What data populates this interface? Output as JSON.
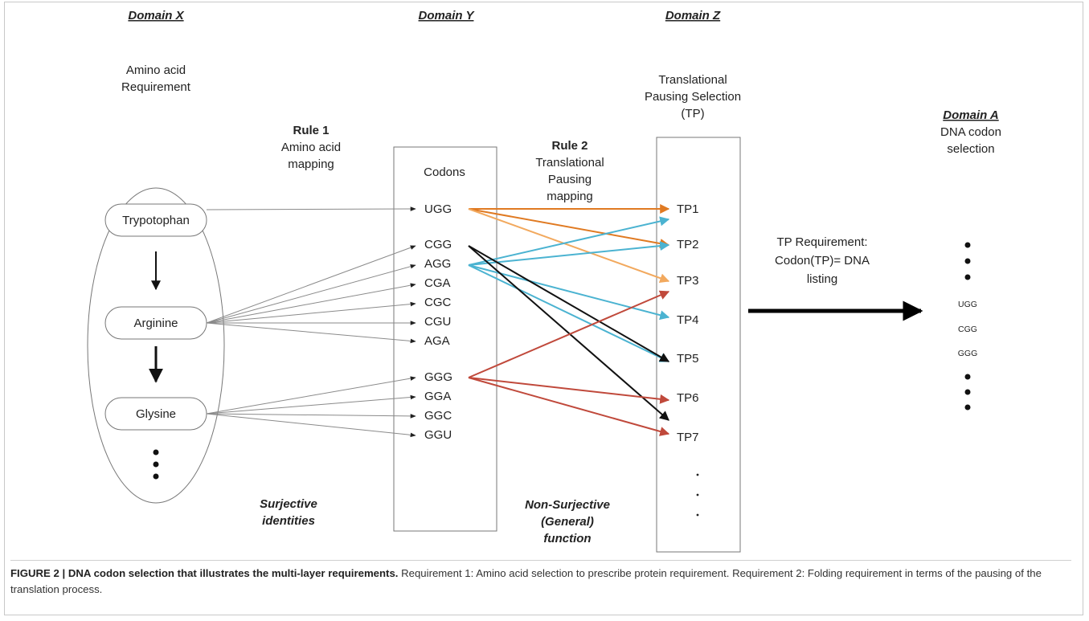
{
  "domains": {
    "x": {
      "title": "Domain X",
      "subtitle_lines": [
        "Amino acid",
        "Requirement"
      ]
    },
    "y": {
      "title": "Domain Y"
    },
    "z": {
      "title": "Domain Z",
      "subtitle_lines": [
        "Translational",
        "Pausing Selection",
        "(TP)"
      ]
    },
    "a": {
      "title": "Domain A",
      "subtitle_lines": [
        "DNA codon",
        "selection"
      ]
    }
  },
  "rules": {
    "rule1": {
      "title": "Rule 1",
      "lines": [
        "Amino acid",
        "mapping"
      ]
    },
    "rule2": {
      "title": "Rule 2",
      "lines": [
        "Translational",
        "Pausing",
        "mapping"
      ]
    }
  },
  "amino_acids": [
    "Trypotophan",
    "Arginine",
    "Glysine"
  ],
  "codons_header": "Codons",
  "codons": [
    "UGG",
    "CGG",
    "AGG",
    "CGA",
    "CGC",
    "CGU",
    "AGA",
    "GGG",
    "GGA",
    "GGC",
    "GGU"
  ],
  "tp_labels": [
    "TP1",
    "TP2",
    "TP3",
    "TP4",
    "TP5",
    "TP6",
    "TP7"
  ],
  "tp_requirement_lines": [
    "TP Requirement:",
    "Codon(TP)= DNA",
    "listing"
  ],
  "dna_listing": [
    "UGG",
    "CGG",
    "GGG"
  ],
  "bottom_labels": {
    "surjective": [
      "Surjective",
      "identities"
    ],
    "non_surjective": [
      "Non-Surjective",
      "(General)",
      "function"
    ]
  },
  "colors": {
    "orange": "#e07a22",
    "light_orange": "#f2a95e",
    "blue": "#4bb3d1",
    "black": "#111111",
    "red": "#c0493b",
    "gray": "#8a8a8a"
  },
  "caption": {
    "title": "FIGURE 2 | DNA codon selection that illustrates the multi-layer requirements.",
    "body": " Requirement 1: Amino acid selection to prescribe protein requirement. Requirement 2: Folding requirement in terms of the pausing of the translation process."
  }
}
